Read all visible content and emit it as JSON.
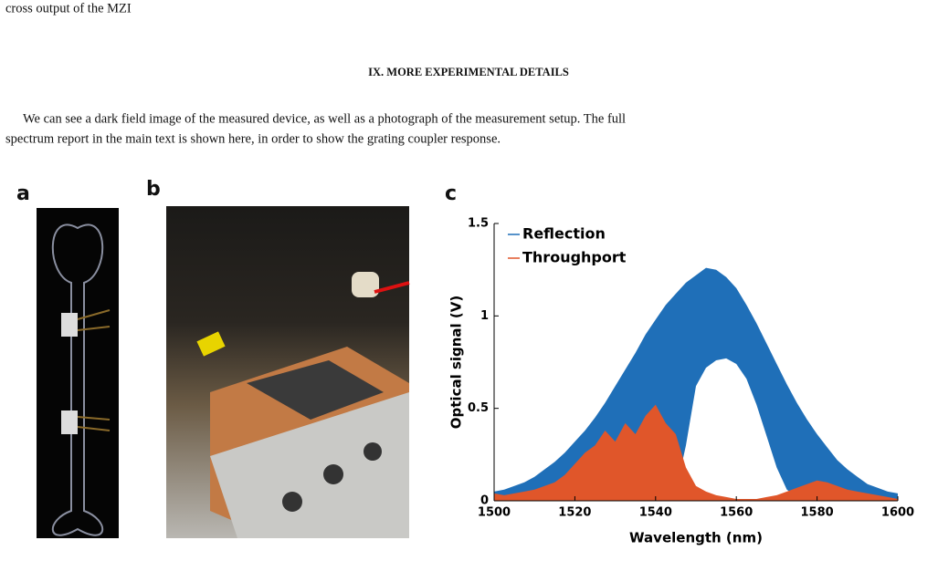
{
  "top_line": "cross output of the MZI",
  "section_heading": "IX.   MORE EXPERIMENTAL DETAILS",
  "paragraph_lines": [
    "We can see a dark field image of the measured device, as well as a photograph of the measurement setup. The full",
    "spectrum report in the main text is shown here, in order to show the grating coupler response."
  ],
  "panel_labels": [
    "a",
    "b",
    "c"
  ],
  "chart_data": {
    "type": "area",
    "x": [
      1500,
      1502.5,
      1505,
      1507.5,
      1510,
      1512.5,
      1515,
      1517.5,
      1520,
      1522.5,
      1525,
      1527.5,
      1530,
      1532.5,
      1535,
      1537.5,
      1540,
      1542.5,
      1545,
      1547.5,
      1550,
      1552.5,
      1555,
      1557.5,
      1560,
      1562.5,
      1565,
      1567.5,
      1570,
      1572.5,
      1575,
      1577.5,
      1580,
      1582.5,
      1585,
      1587.5,
      1590,
      1592.5,
      1595,
      1597.5,
      1600
    ],
    "series": [
      {
        "name": "Reflection",
        "color": "#1f6fb8",
        "values": [
          0.05,
          0.06,
          0.08,
          0.1,
          0.13,
          0.17,
          0.21,
          0.26,
          0.32,
          0.38,
          0.45,
          0.53,
          0.62,
          0.71,
          0.8,
          0.9,
          0.98,
          1.06,
          1.12,
          1.18,
          1.22,
          1.26,
          1.25,
          1.21,
          1.15,
          1.06,
          0.96,
          0.85,
          0.74,
          0.63,
          0.53,
          0.44,
          0.36,
          0.29,
          0.22,
          0.17,
          0.13,
          0.09,
          0.07,
          0.05,
          0.04
        ],
        "lower": [
          0.01,
          0.01,
          0.01,
          0.01,
          0.01,
          0.01,
          0.01,
          0.01,
          0.01,
          0.01,
          0.01,
          0.01,
          0.01,
          0.01,
          0.01,
          0.01,
          0.01,
          0.01,
          0.05,
          0.3,
          0.62,
          0.72,
          0.76,
          0.77,
          0.74,
          0.66,
          0.52,
          0.35,
          0.18,
          0.06,
          0.02,
          0.01,
          0.01,
          0.01,
          0.01,
          0.01,
          0.01,
          0.01,
          0.01,
          0.01,
          0.01
        ]
      },
      {
        "name": "Throughport",
        "color": "#e0562a",
        "values": [
          0.04,
          0.03,
          0.04,
          0.05,
          0.06,
          0.08,
          0.1,
          0.14,
          0.2,
          0.26,
          0.3,
          0.38,
          0.32,
          0.42,
          0.36,
          0.46,
          0.52,
          0.42,
          0.36,
          0.18,
          0.08,
          0.05,
          0.03,
          0.02,
          0.01,
          0.01,
          0.01,
          0.02,
          0.03,
          0.05,
          0.07,
          0.09,
          0.11,
          0.1,
          0.08,
          0.06,
          0.05,
          0.04,
          0.03,
          0.02,
          0.01
        ]
      }
    ],
    "xlabel": "Wavelength (nm)",
    "ylabel": "Optical signal (V)",
    "xlim": [
      1500,
      1600
    ],
    "xticks": [
      1500,
      1520,
      1540,
      1560,
      1580,
      1600
    ],
    "ylim": [
      0,
      1.5
    ],
    "yticks": [
      0,
      0.5,
      1,
      1.5
    ],
    "legend": "top-left"
  }
}
